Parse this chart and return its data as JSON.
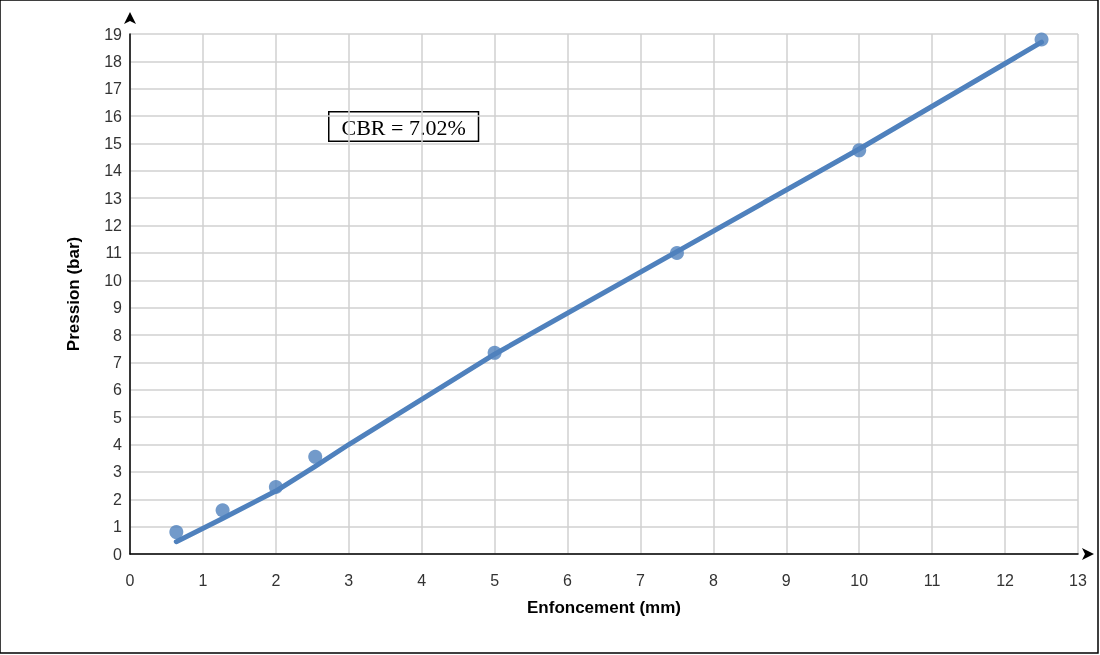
{
  "chart_data": {
    "type": "scatter",
    "xlabel": "Enfoncement (mm)",
    "ylabel": "Pression (bar)",
    "annotations": [
      "CBR = 7.02%"
    ],
    "xlim": [
      0,
      13
    ],
    "xticks": [
      0,
      1,
      2,
      3,
      4,
      5,
      6,
      7,
      8,
      9,
      10,
      11,
      12,
      13
    ],
    "ylim": [
      0,
      19
    ],
    "yticks": [
      0,
      1,
      2,
      3,
      4,
      5,
      6,
      7,
      8,
      9,
      10,
      11,
      12,
      13,
      14,
      15,
      16,
      17,
      18,
      19
    ],
    "grid": true,
    "marker": "circle",
    "series": [
      {
        "color": "#4f81bd",
        "x": [
          0.635,
          1.27,
          2,
          2.54,
          5,
          7.5,
          10,
          12.5
        ],
        "values": [
          0.8,
          1.6,
          2.45,
          3.55,
          7.35,
          11,
          14.75,
          18.8
        ]
      },
      {
        "type": "line",
        "color": "#4f81bd",
        "marker": "none",
        "x": [
          0.635,
          1.27,
          2,
          2.54,
          3,
          5,
          7.5,
          10,
          12.5
        ],
        "values": [
          0.45,
          1.3,
          2.3,
          3.2,
          4.0,
          7.3,
          11.05,
          14.8,
          18.7
        ]
      }
    ]
  }
}
